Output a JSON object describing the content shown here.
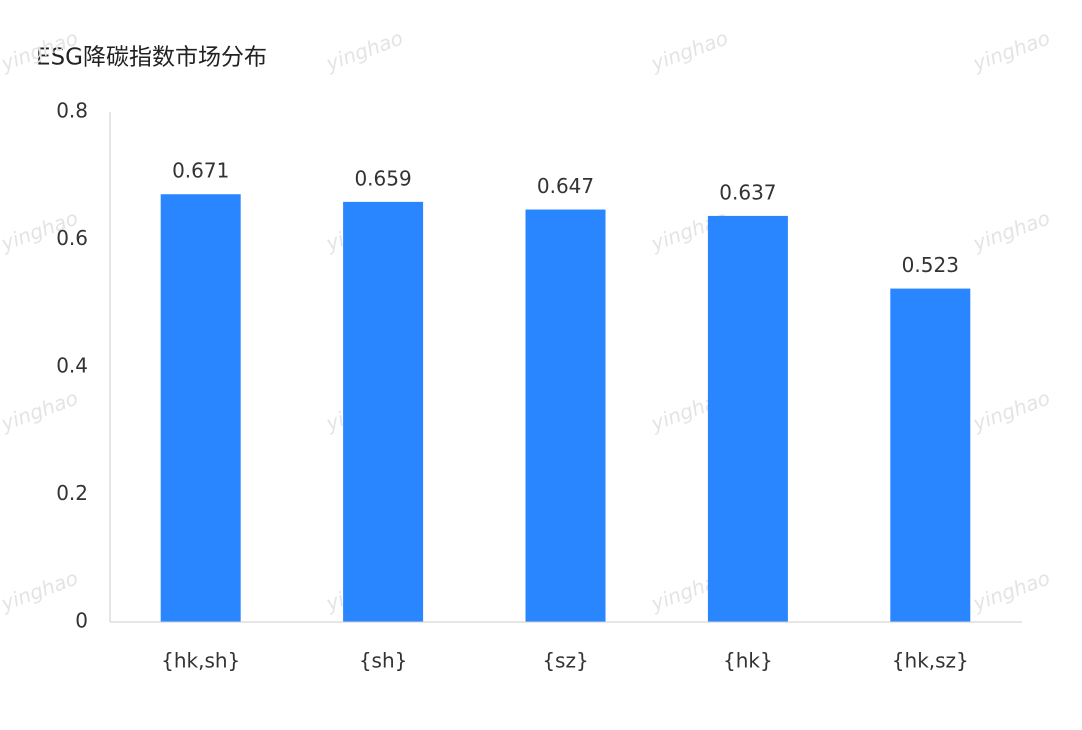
{
  "chart_data": {
    "type": "bar",
    "title": "ESG降碳指数市场分布",
    "categories": [
      "{hk,sh}",
      "{sh}",
      "{sz}",
      "{hk}",
      "{hk,sz}"
    ],
    "values": [
      0.671,
      0.659,
      0.647,
      0.637,
      0.523
    ],
    "color": "#2a86ff",
    "ylim": [
      0,
      0.8
    ],
    "yticks": [
      0,
      0.2,
      0.4,
      0.6,
      0.8
    ],
    "grid": false,
    "watermark": "yinghao"
  }
}
